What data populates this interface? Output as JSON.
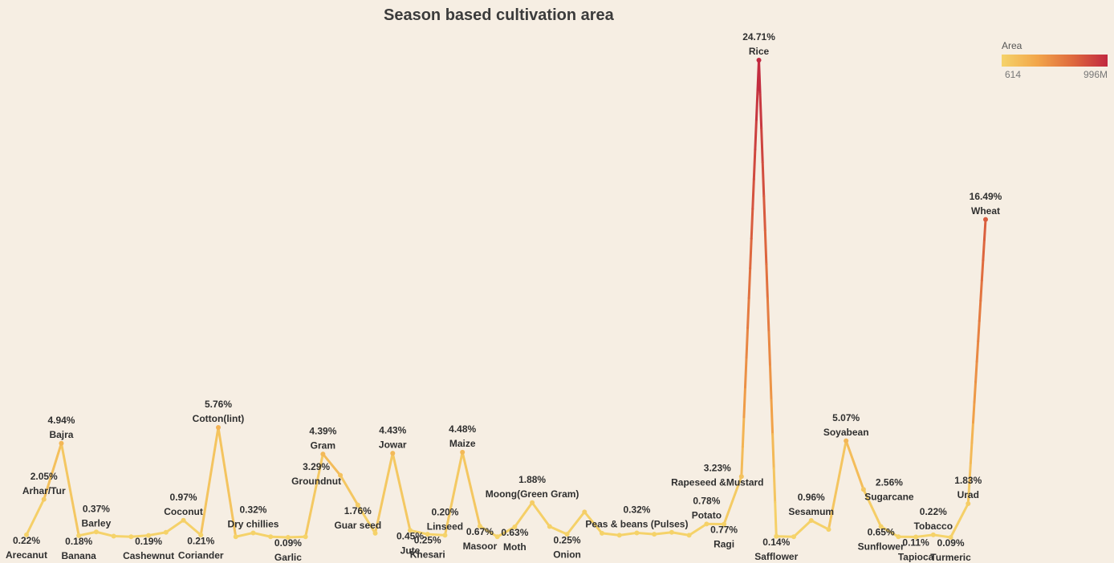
{
  "chart_data": {
    "type": "line",
    "title": "Season based cultivation area",
    "xlabel": "",
    "ylabel": "",
    "legend": {
      "title": "Area",
      "min_label": "614",
      "max_label": "996M",
      "placement": "top-right",
      "colors": [
        "#f5d36a",
        "#f2a64a",
        "#df6a3e",
        "#c12840"
      ]
    },
    "ylim": [
      0,
      26
    ],
    "points": [
      {
        "crop": "Arecanut",
        "value": 0.22,
        "label": "0.22%",
        "show_name": true,
        "show_value": true,
        "lp": "below"
      },
      {
        "crop": "Arhar/Tur",
        "value": 2.05,
        "label": "2.05%",
        "show_name": true,
        "show_value": true,
        "lp": "above"
      },
      {
        "crop": "Bajra",
        "value": 4.94,
        "label": "4.94%",
        "show_name": true,
        "show_value": true,
        "lp": "above"
      },
      {
        "crop": "Banana",
        "value": 0.18,
        "label": "0.18%",
        "show_name": true,
        "show_value": true,
        "lp": "below"
      },
      {
        "crop": "Barley",
        "value": 0.37,
        "label": "0.37%",
        "show_name": true,
        "show_value": true,
        "lp": "above"
      },
      {
        "crop": "",
        "value": 0.15,
        "label": "",
        "show_name": false,
        "show_value": false,
        "lp": "none"
      },
      {
        "crop": "",
        "value": 0.12,
        "label": "",
        "show_name": false,
        "show_value": false,
        "lp": "none"
      },
      {
        "crop": "Cashewnut",
        "value": 0.19,
        "label": "0.19%",
        "show_name": true,
        "show_value": true,
        "lp": "below"
      },
      {
        "crop": "",
        "value": 0.35,
        "label": "",
        "show_name": false,
        "show_value": false,
        "lp": "none"
      },
      {
        "crop": "Coconut",
        "value": 0.97,
        "label": "0.97%",
        "show_name": true,
        "show_value": true,
        "lp": "above"
      },
      {
        "crop": "Coriander",
        "value": 0.21,
        "label": "0.21%",
        "show_name": true,
        "show_value": true,
        "lp": "below"
      },
      {
        "crop": "Cotton(lint)",
        "value": 5.76,
        "label": "5.76%",
        "show_name": true,
        "show_value": true,
        "lp": "above"
      },
      {
        "crop": "",
        "value": 0.12,
        "label": "",
        "show_name": false,
        "show_value": false,
        "lp": "none"
      },
      {
        "crop": "Dry chillies",
        "value": 0.32,
        "label": "0.32%",
        "show_name": true,
        "show_value": true,
        "lp": "above"
      },
      {
        "crop": "",
        "value": 0.12,
        "label": "",
        "show_name": false,
        "show_value": false,
        "lp": "none"
      },
      {
        "crop": "Garlic",
        "value": 0.09,
        "label": "0.09%",
        "show_name": true,
        "show_value": true,
        "lp": "below"
      },
      {
        "crop": "",
        "value": 0.12,
        "label": "",
        "show_name": false,
        "show_value": false,
        "lp": "none"
      },
      {
        "crop": "Gram",
        "value": 4.39,
        "label": "4.39%",
        "show_name": true,
        "show_value": true,
        "lp": "above"
      },
      {
        "crop": "Groundnut",
        "value": 3.29,
        "label": "3.29%",
        "show_name": true,
        "show_value": true,
        "lp": "left"
      },
      {
        "crop": "Guar seed",
        "value": 1.76,
        "label": "1.76%",
        "show_name": true,
        "show_value": true,
        "lp": "below"
      },
      {
        "crop": "",
        "value": 0.3,
        "label": "",
        "show_name": false,
        "show_value": false,
        "lp": "none"
      },
      {
        "crop": "Jowar",
        "value": 4.43,
        "label": "4.43%",
        "show_name": true,
        "show_value": true,
        "lp": "above"
      },
      {
        "crop": "Jute",
        "value": 0.45,
        "label": "0.45%",
        "show_name": true,
        "show_value": true,
        "lp": "below"
      },
      {
        "crop": "Khesari",
        "value": 0.25,
        "label": "0.25%",
        "show_name": true,
        "show_value": true,
        "lp": "below"
      },
      {
        "crop": "Linseed",
        "value": 0.2,
        "label": "0.20%",
        "show_name": true,
        "show_value": true,
        "lp": "above"
      },
      {
        "crop": "Maize",
        "value": 4.48,
        "label": "4.48%",
        "show_name": true,
        "show_value": true,
        "lp": "above"
      },
      {
        "crop": "Masoor",
        "value": 0.67,
        "label": "0.67%",
        "show_name": true,
        "show_value": true,
        "lp": "below"
      },
      {
        "crop": "",
        "value": 0.12,
        "label": "",
        "show_name": false,
        "show_value": false,
        "lp": "none"
      },
      {
        "crop": "Moth",
        "value": 0.63,
        "label": "0.63%",
        "show_name": true,
        "show_value": true,
        "lp": "below"
      },
      {
        "crop": "Moong(Green Gram)",
        "value": 1.88,
        "label": "1.88%",
        "show_name": true,
        "show_value": true,
        "lp": "above"
      },
      {
        "crop": "",
        "value": 0.65,
        "label": "",
        "show_name": false,
        "show_value": false,
        "lp": "none"
      },
      {
        "crop": "Onion",
        "value": 0.25,
        "label": "0.25%",
        "show_name": true,
        "show_value": true,
        "lp": "below"
      },
      {
        "crop": "",
        "value": 1.4,
        "label": "",
        "show_name": false,
        "show_value": false,
        "lp": "none"
      },
      {
        "crop": "",
        "value": 0.3,
        "label": "",
        "show_name": false,
        "show_value": false,
        "lp": "none"
      },
      {
        "crop": "",
        "value": 0.2,
        "label": "",
        "show_name": false,
        "show_value": false,
        "lp": "none"
      },
      {
        "crop": "Peas & beans (Pulses)",
        "value": 0.32,
        "label": "0.32%",
        "show_name": true,
        "show_value": true,
        "lp": "above"
      },
      {
        "crop": "",
        "value": 0.25,
        "label": "",
        "show_name": false,
        "show_value": false,
        "lp": "none"
      },
      {
        "crop": "",
        "value": 0.35,
        "label": "",
        "show_name": false,
        "show_value": false,
        "lp": "none"
      },
      {
        "crop": "",
        "value": 0.2,
        "label": "",
        "show_name": false,
        "show_value": false,
        "lp": "none"
      },
      {
        "crop": "Potato",
        "value": 0.78,
        "label": "0.78%",
        "show_name": true,
        "show_value": true,
        "lp": "above"
      },
      {
        "crop": "Ragi",
        "value": 0.77,
        "label": "0.77%",
        "show_name": true,
        "show_value": true,
        "lp": "below"
      },
      {
        "crop": "Rapeseed &Mustard",
        "value": 3.23,
        "label": "3.23%",
        "show_name": true,
        "show_value": true,
        "lp": "left"
      },
      {
        "crop": "Rice",
        "value": 24.71,
        "label": "24.71%",
        "show_name": true,
        "show_value": true,
        "lp": "above"
      },
      {
        "crop": "Safflower",
        "value": 0.14,
        "label": "0.14%",
        "show_name": true,
        "show_value": true,
        "lp": "below"
      },
      {
        "crop": "",
        "value": 0.12,
        "label": "",
        "show_name": false,
        "show_value": false,
        "lp": "none"
      },
      {
        "crop": "Sesamum",
        "value": 0.96,
        "label": "0.96%",
        "show_name": true,
        "show_value": true,
        "lp": "above"
      },
      {
        "crop": "",
        "value": 0.5,
        "label": "",
        "show_name": false,
        "show_value": false,
        "lp": "none"
      },
      {
        "crop": "Soyabean",
        "value": 5.07,
        "label": "5.07%",
        "show_name": true,
        "show_value": true,
        "lp": "above"
      },
      {
        "crop": "Sugarcane",
        "value": 2.56,
        "label": "2.56%",
        "show_name": true,
        "show_value": true,
        "lp": "right"
      },
      {
        "crop": "Sunflower",
        "value": 0.65,
        "label": "0.65%",
        "show_name": true,
        "show_value": true,
        "lp": "below"
      },
      {
        "crop": "",
        "value": 0.12,
        "label": "",
        "show_name": false,
        "show_value": false,
        "lp": "none"
      },
      {
        "crop": "Tapioca",
        "value": 0.11,
        "label": "0.11%",
        "show_name": true,
        "show_value": true,
        "lp": "below"
      },
      {
        "crop": "Tobacco",
        "value": 0.22,
        "label": "0.22%",
        "show_name": true,
        "show_value": true,
        "lp": "above"
      },
      {
        "crop": "Turmeric",
        "value": 0.09,
        "label": "0.09%",
        "show_name": true,
        "show_value": true,
        "lp": "below"
      },
      {
        "crop": "Urad",
        "value": 1.83,
        "label": "1.83%",
        "show_name": true,
        "show_value": true,
        "lp": "above"
      },
      {
        "crop": "Wheat",
        "value": 16.49,
        "label": "16.49%",
        "show_name": true,
        "show_value": true,
        "lp": "above"
      }
    ]
  }
}
